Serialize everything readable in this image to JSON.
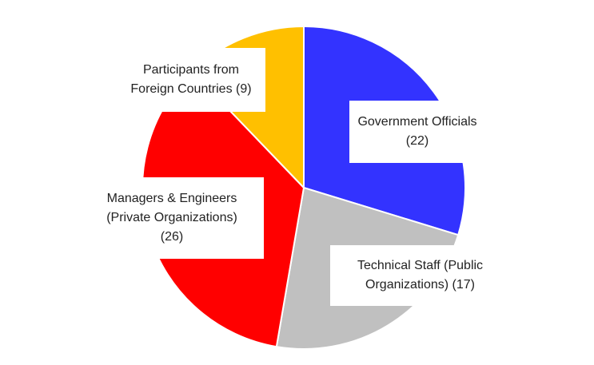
{
  "chart_data": {
    "type": "pie",
    "start_angle_deg": 0,
    "direction": "clockwise",
    "slices": [
      {
        "name": "Government Officials",
        "value": 22,
        "color": "#3333ff",
        "label_lines": [
          "Government Officials",
          "(22)"
        ]
      },
      {
        "name": "Technical Staff (Public Organizations)",
        "value": 17,
        "color": "#c0c0c0",
        "label_lines": [
          "Technical Staff (Public",
          "Organizations) (17)"
        ]
      },
      {
        "name": "Managers & Engineers (Private Organizations)",
        "value": 26,
        "color": "#ff0000",
        "label_lines": [
          "Managers & Engineers",
          "(Private Organizations)",
          "(26)"
        ]
      },
      {
        "name": "Participants from Foreign Countries",
        "value": 9,
        "color": "#ffc000",
        "label_lines": [
          "Participants from",
          "Foreign Countries (9)"
        ]
      }
    ]
  }
}
